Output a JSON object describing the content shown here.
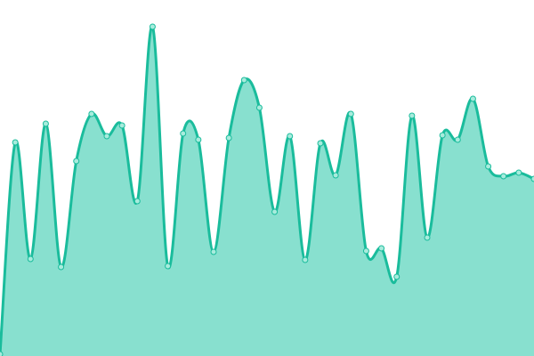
{
  "chart_data": {
    "type": "area",
    "title": "",
    "xlabel": "",
    "ylabel": "",
    "grid": false,
    "legend": "none",
    "x": [
      0,
      1,
      2,
      3,
      4,
      5,
      6,
      7,
      8,
      9,
      10,
      11,
      12,
      13,
      14,
      15,
      16,
      17,
      18,
      19,
      20,
      21,
      22,
      23,
      24,
      25,
      26,
      27,
      28,
      29,
      30,
      31,
      32,
      33,
      34,
      35
    ],
    "values": [
      2,
      240,
      109,
      261,
      100,
      219,
      272,
      247,
      259,
      174,
      370,
      101,
      250,
      243,
      117,
      245,
      310,
      279,
      162,
      247,
      108,
      239,
      203,
      272,
      118,
      121,
      89,
      270,
      133,
      248,
      243,
      289,
      213,
      202,
      206,
      199
    ],
    "ylim": [
      0,
      400
    ],
    "colors": {
      "line": "#1abc9c",
      "fill": "#88e0cf",
      "point_fill": "#a8ecdd"
    }
  }
}
